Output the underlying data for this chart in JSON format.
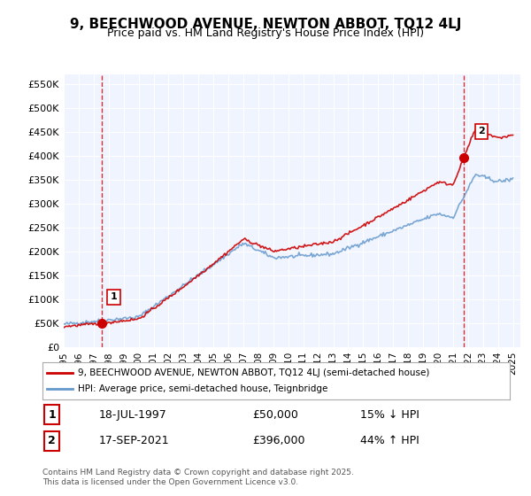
{
  "title": "9, BEECHWOOD AVENUE, NEWTON ABBOT, TQ12 4LJ",
  "subtitle": "Price paid vs. HM Land Registry's House Price Index (HPI)",
  "ylabel_ticks": [
    "£0",
    "£50K",
    "£100K",
    "£150K",
    "£200K",
    "£250K",
    "£300K",
    "£350K",
    "£400K",
    "£450K",
    "£500K",
    "£550K"
  ],
  "ytick_vals": [
    0,
    50000,
    100000,
    150000,
    200000,
    250000,
    300000,
    350000,
    400000,
    450000,
    500000,
    550000
  ],
  "ylim": [
    0,
    570000
  ],
  "xlim_start": 1995.0,
  "xlim_end": 2025.5,
  "sale1_x": 1997.54,
  "sale1_y": 50000,
  "sale2_x": 2021.71,
  "sale2_y": 396000,
  "sale1_label": "1",
  "sale2_label": "2",
  "line_color_property": "#cc0000",
  "line_color_hpi": "#6699cc",
  "marker_color": "#cc0000",
  "dashed_line_color": "#cc0000",
  "background_color": "#f0f4ff",
  "plot_bg_color": "#f0f4ff",
  "legend_label_property": "9, BEECHWOOD AVENUE, NEWTON ABBOT, TQ12 4LJ (semi-detached house)",
  "legend_label_hpi": "HPI: Average price, semi-detached house, Teignbridge",
  "annotation1_date": "18-JUL-1997",
  "annotation1_price": "£50,000",
  "annotation1_hpi": "15% ↓ HPI",
  "annotation2_date": "17-SEP-2021",
  "annotation2_price": "£396,000",
  "annotation2_hpi": "44% ↑ HPI",
  "footer": "Contains HM Land Registry data © Crown copyright and database right 2025.\nThis data is licensed under the Open Government Licence v3.0.",
  "xtick_years": [
    1995,
    1996,
    1997,
    1998,
    1999,
    2000,
    2001,
    2002,
    2003,
    2004,
    2005,
    2006,
    2007,
    2008,
    2009,
    2010,
    2011,
    2012,
    2013,
    2014,
    2015,
    2016,
    2017,
    2018,
    2019,
    2020,
    2021,
    2022,
    2023,
    2024,
    2025
  ]
}
